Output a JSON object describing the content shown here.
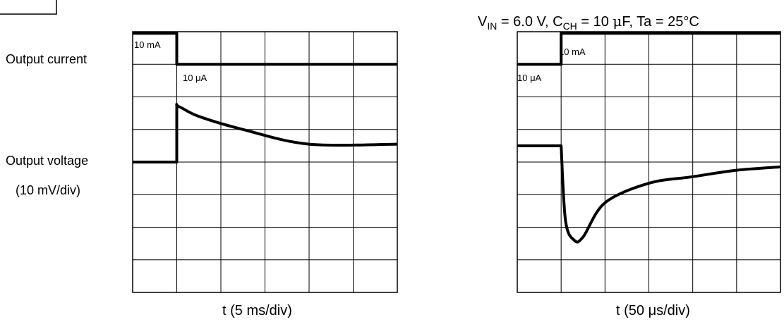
{
  "side_labels": {
    "output_current": "Output current",
    "output_voltage": "Output voltage",
    "voltage_scale": "(10 mV/div)"
  },
  "chart_data": [
    {
      "type": "line",
      "xlabel": "t (5 ms/div)",
      "x_divisions": 6,
      "y_divisions": 8,
      "grid": true,
      "series": [
        {
          "name": "Output current",
          "level_labels": {
            "high": "10 mA",
            "low": "10 μA"
          },
          "x": [
            0,
            1,
            1,
            6
          ],
          "y": [
            7.95,
            7.95,
            7,
            7
          ]
        },
        {
          "name": "Output voltage",
          "x": [
            0,
            1,
            1,
            1.05,
            1.5,
            2.5,
            4,
            6
          ],
          "y": [
            4.0,
            4.0,
            5.6,
            5.7,
            5.4,
            5.0,
            4.55,
            4.55
          ]
        }
      ]
    },
    {
      "type": "line",
      "title_parts": [
        "V",
        "IN",
        " = 6.0 V, C",
        "CH",
        " = 10 ",
        "μ",
        "F, Ta = 25°C"
      ],
      "xlabel": "t (50 μs/div)",
      "x_divisions": 6,
      "y_divisions": 8,
      "grid": true,
      "series": [
        {
          "name": "Output current",
          "level_labels": {
            "high": "10 mA",
            "low": "10 μA"
          },
          "x": [
            0,
            1,
            1,
            6
          ],
          "y": [
            7,
            7,
            7.95,
            7.95
          ]
        },
        {
          "name": "Output voltage",
          "x": [
            0,
            1,
            1.1,
            1.3,
            1.5,
            2,
            3,
            4,
            5,
            6
          ],
          "y": [
            4.5,
            4.5,
            2.2,
            1.6,
            1.7,
            2.75,
            3.35,
            3.55,
            3.75,
            3.85
          ]
        }
      ]
    }
  ]
}
